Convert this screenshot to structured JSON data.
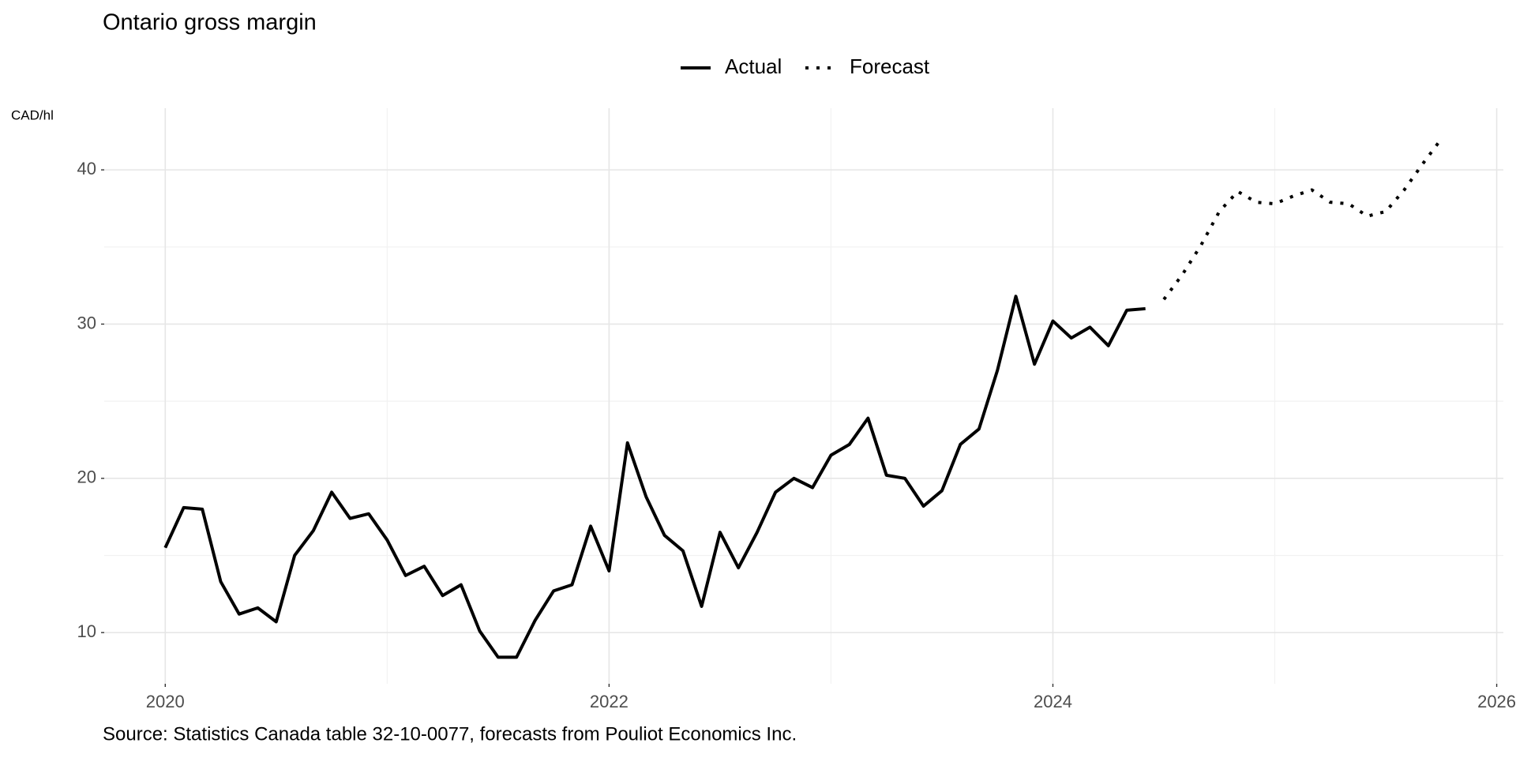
{
  "chart_data": {
    "type": "line",
    "title": "Ontario gross margin",
    "y_label": "CAD/hl",
    "caption": "Source: Statistics Canada table 32-10-0077, forecasts from Pouliot Economics Inc.",
    "x": [
      2020,
      2020.083,
      2020.167,
      2020.25,
      2020.333,
      2020.417,
      2020.5,
      2020.583,
      2020.667,
      2020.75,
      2020.833,
      2020.917,
      2021,
      2021.083,
      2021.167,
      2021.25,
      2021.333,
      2021.417,
      2021.5,
      2021.583,
      2021.667,
      2021.75,
      2021.833,
      2021.917,
      2022,
      2022.083,
      2022.167,
      2022.25,
      2022.333,
      2022.417,
      2022.5,
      2022.583,
      2022.667,
      2022.75,
      2022.833,
      2022.917,
      2023,
      2023.083,
      2023.167,
      2023.25,
      2023.333,
      2023.417,
      2023.5,
      2023.583,
      2023.667,
      2023.75,
      2023.833,
      2023.917,
      2024,
      2024.083,
      2024.167,
      2024.25,
      2024.333,
      2024.417,
      2024.5,
      2024.583,
      2024.667,
      2024.75,
      2024.833,
      2024.917,
      2025,
      2025.083,
      2025.167,
      2025.25,
      2025.333,
      2025.417,
      2025.5,
      2025.583,
      2025.667,
      2025.75
    ],
    "series": [
      {
        "name": "Actual",
        "color": "#000000",
        "dash": false,
        "values": [
          15.5,
          18.1,
          18.0,
          13.3,
          11.2,
          11.6,
          10.7,
          15.0,
          16.6,
          19.1,
          17.4,
          17.7,
          16.0,
          13.7,
          14.3,
          12.4,
          13.1,
          10.1,
          8.4,
          8.4,
          10.8,
          12.7,
          13.1,
          16.9,
          14.0,
          22.3,
          18.8,
          16.3,
          15.3,
          11.7,
          16.5,
          14.2,
          16.5,
          19.1,
          20.0,
          19.4,
          21.5,
          22.2,
          23.9,
          20.2,
          20.0,
          18.2,
          19.2,
          22.2,
          23.2,
          27.0,
          31.8,
          27.4,
          30.2,
          29.1,
          29.8,
          28.6,
          30.9,
          31.0,
          null,
          null,
          null,
          null,
          null,
          null,
          null,
          null,
          null,
          null,
          null,
          null,
          null,
          null,
          null,
          null
        ]
      },
      {
        "name": "Forecast",
        "color": "#000000",
        "dash": true,
        "values": [
          null,
          null,
          null,
          null,
          null,
          null,
          null,
          null,
          null,
          null,
          null,
          null,
          null,
          null,
          null,
          null,
          null,
          null,
          null,
          null,
          null,
          null,
          null,
          null,
          null,
          null,
          null,
          null,
          null,
          null,
          null,
          null,
          null,
          null,
          null,
          null,
          null,
          null,
          null,
          null,
          null,
          null,
          null,
          null,
          null,
          null,
          null,
          null,
          null,
          null,
          null,
          null,
          null,
          null,
          31.6,
          33.2,
          35.1,
          37.3,
          38.6,
          37.9,
          37.8,
          38.3,
          38.7,
          37.9,
          37.8,
          37.0,
          37.3,
          38.7,
          40.4,
          42.0
        ]
      }
    ],
    "xlim": [
      2019.725,
      2026.03
    ],
    "xticks": [
      2020,
      2022,
      2024,
      2026
    ],
    "x_minor_grid": [
      2021,
      2023,
      2025
    ],
    "ylim": [
      6.68,
      44.0
    ],
    "yticks": [
      10,
      20,
      30,
      40
    ],
    "y_minor_grid": [
      15,
      25,
      35
    ],
    "grid": true,
    "legend": "top"
  }
}
